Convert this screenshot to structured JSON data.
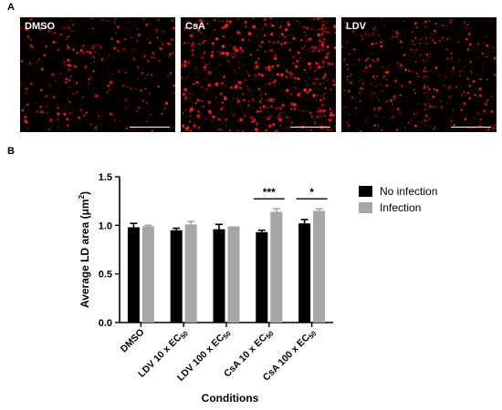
{
  "panels": {
    "a_letter": "A",
    "b_letter": "B",
    "images": [
      {
        "label": "DMSO"
      },
      {
        "label": "CsA"
      },
      {
        "label": "LDV"
      }
    ]
  },
  "colors": {
    "no_infection": "#000000",
    "infection": "#a6a6a6",
    "micro_background": "#050000",
    "stain": "#ff2010"
  },
  "legend": {
    "no_infection": "No infection",
    "infection": "Infection"
  },
  "chart_data": {
    "type": "bar",
    "title": "",
    "xlabel": "Conditions",
    "ylabel": "Average LD area (μm²)",
    "ylabel_main": "Average LD area (μm",
    "ylabel_sup": "2",
    "ylabel_close": ")",
    "ylim": [
      0,
      1.5
    ],
    "yticks": [
      "0.0",
      "0.5",
      "1.0",
      "1.5"
    ],
    "categories": [
      "DMSO",
      "LDV 10 x EC50",
      "LDV 100 x EC50",
      "CsA 10 x EC50",
      "CsA 100 x EC50"
    ],
    "category_parts": [
      {
        "main": "DMSO",
        "sub": ""
      },
      {
        "main": "LDV 10 x EC",
        "sub": "50"
      },
      {
        "main": "LDV 100 x EC",
        "sub": "50"
      },
      {
        "main": "CsA 10 x EC",
        "sub": "50"
      },
      {
        "main": "CsA 100 x EC",
        "sub": "50"
      }
    ],
    "series": [
      {
        "name": "No infection",
        "values": [
          0.98,
          0.95,
          0.96,
          0.93,
          1.02
        ],
        "errors": [
          0.04,
          0.02,
          0.05,
          0.02,
          0.04
        ]
      },
      {
        "name": "Infection",
        "values": [
          0.99,
          1.01,
          0.99,
          1.14,
          1.15
        ],
        "errors": [
          0.01,
          0.03,
          0.0,
          0.03,
          0.02
        ]
      }
    ],
    "significance": [
      {
        "category": 3,
        "label": "***"
      },
      {
        "category": 4,
        "label": "*"
      }
    ],
    "legend_position": "right",
    "grid": false
  }
}
